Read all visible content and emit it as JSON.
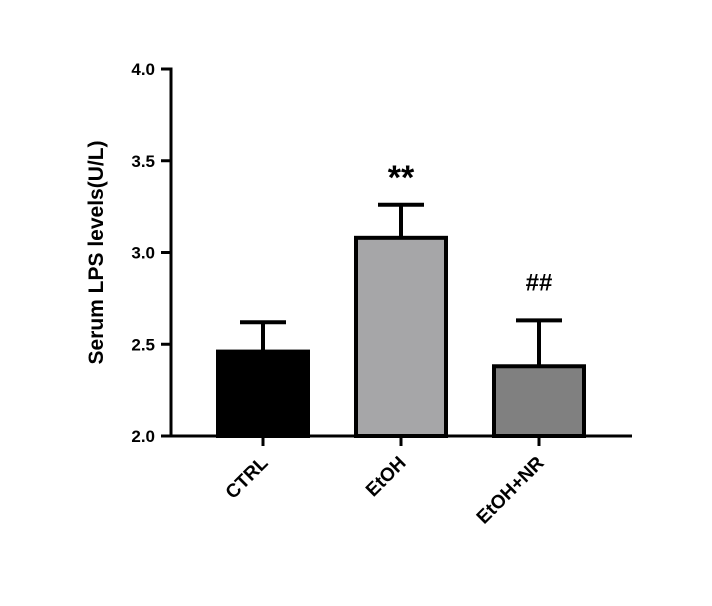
{
  "chart_data": {
    "type": "bar",
    "title": "",
    "xlabel": "",
    "ylabel": "Serum LPS levels(U/L)",
    "ylim": [
      2.0,
      4.0
    ],
    "yticks": [
      2.0,
      2.5,
      3.0,
      3.5,
      4.0
    ],
    "ytick_labels": [
      "2.0",
      "2.5",
      "3.0",
      "3.5",
      "4.0"
    ],
    "categories": [
      "CTRL",
      "EtOH",
      "EtOH+NR"
    ],
    "values": [
      2.46,
      3.08,
      2.38
    ],
    "errors": [
      0.16,
      0.18,
      0.25
    ],
    "bar_colors": [
      "#000000",
      "#a6a6a8",
      "#808080"
    ],
    "annotations": [
      "",
      "**",
      "##"
    ],
    "grid": false,
    "legend": "none"
  }
}
